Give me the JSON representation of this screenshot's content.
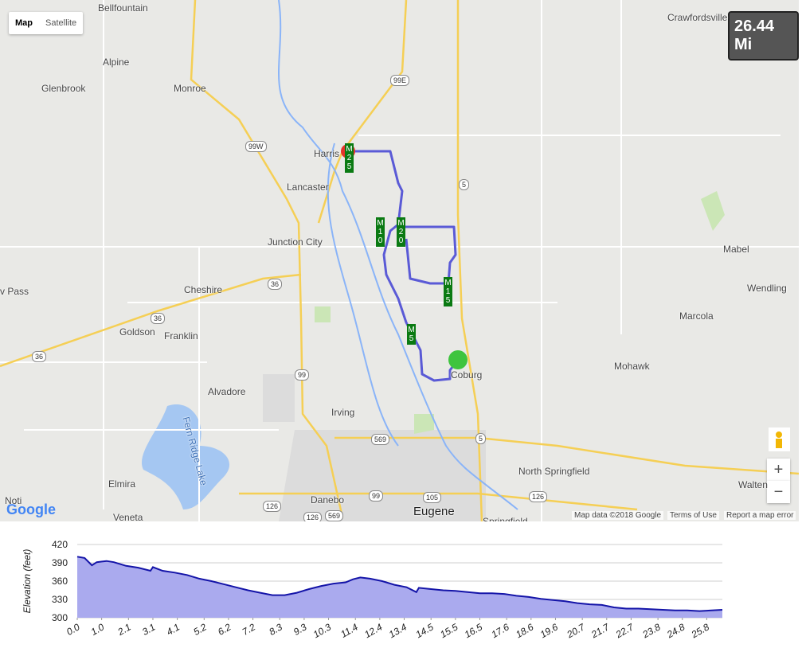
{
  "map": {
    "map_type_buttons": [
      "Map",
      "Satellite"
    ],
    "distance": "26.44 Mi",
    "places": [
      "Bellfountain",
      "Crawfordsville",
      "Alpine",
      "Glenbrook",
      "Monroe",
      "Harris",
      "Lancaster",
      "Junction City",
      "Cheshire",
      "v Pass",
      "Goldson",
      "Franklin",
      "Alvadore",
      "Irving",
      "Elmira",
      "Noti",
      "Veneta",
      "Danebo",
      "Eugene",
      "Springfield",
      "North Springfield",
      "Coburg",
      "Mabel",
      "Wendling",
      "Marcola",
      "Mohawk",
      "Walten",
      "Fern Ridge Lake"
    ],
    "shields": [
      "99E",
      "99W",
      "5",
      "36",
      "36",
      "36",
      "99",
      "569",
      "5",
      "99",
      "105",
      "126",
      "126",
      "126",
      "569"
    ],
    "mile_markers": [
      "M25",
      "M10",
      "M20",
      "M15",
      "M5"
    ],
    "zoom": [
      "+",
      "−"
    ],
    "logo": "Google",
    "attribution": [
      "Map data ©2018 Google",
      "Terms of Use",
      "Report a map error"
    ]
  },
  "chart_data": {
    "type": "area",
    "y_label": "Elevation (feet)",
    "color": "#aaaaee",
    "line_color": "#1414a8",
    "grid": true,
    "x": [
      0,
      0.3,
      0.5,
      0.6,
      0.8,
      1.2,
      1.5,
      2.0,
      2.5,
      3.0,
      3.1,
      3.5,
      4.0,
      4.5,
      5.0,
      5.5,
      6.0,
      6.5,
      7.0,
      7.5,
      8.0,
      8.5,
      9.0,
      9.5,
      10.0,
      10.5,
      11.0,
      11.3,
      11.6,
      12.0,
      12.5,
      13.0,
      13.5,
      13.9,
      14.0,
      14.5,
      15.0,
      15.5,
      16.0,
      16.5,
      17.0,
      17.5,
      18.0,
      18.5,
      19.0,
      19.5,
      20.0,
      20.5,
      21.0,
      21.5,
      22.0,
      22.5,
      23.0,
      23.5,
      24.0,
      24.5,
      25.0,
      25.5,
      26.0,
      26.44
    ],
    "values": [
      400,
      398,
      390,
      386,
      391,
      393,
      391,
      385,
      382,
      377,
      383,
      377,
      374,
      370,
      364,
      360,
      355,
      350,
      345,
      341,
      337,
      337,
      341,
      347,
      352,
      356,
      358,
      363,
      366,
      364,
      360,
      354,
      350,
      342,
      349,
      347,
      345,
      344,
      342,
      340,
      340,
      339,
      336,
      334,
      331,
      329,
      327,
      324,
      322,
      321,
      317,
      315,
      315,
      314,
      313,
      312,
      312,
      311,
      312,
      313
    ],
    "xlim": [
      0,
      26.44
    ],
    "ylim": [
      300,
      420
    ],
    "yticks": [
      300,
      330,
      360,
      390,
      420
    ],
    "xticks": [
      {
        "value": 0,
        "label": "0.0"
      },
      {
        "value": 1,
        "label": "1.0"
      },
      2.1,
      3.1,
      4.1,
      5.2,
      6.2,
      7.2,
      8.3,
      9.3,
      10.3,
      11.4,
      12.4,
      13.4,
      14.5,
      15.5,
      16.5,
      17.6,
      18.6,
      19.6,
      20.7,
      21.7,
      22.7,
      23.8,
      24.8,
      25.8
    ]
  }
}
